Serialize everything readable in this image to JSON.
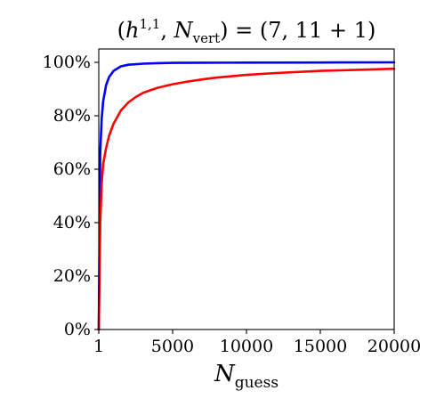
{
  "chart_data": {
    "type": "line",
    "title": {
      "open": "(",
      "h": "h",
      "h_sup": "1,1",
      "comma": ", ",
      "N": "N",
      "N_sub": "vert",
      "rest": ") = (7, 11 + 1)"
    },
    "xlabel": {
      "main": "N",
      "sub": "guess"
    },
    "ylabel": "",
    "xlim": [
      1,
      20000
    ],
    "ylim": [
      0,
      105
    ],
    "x_ticks": [
      1,
      5000,
      10000,
      15000,
      20000
    ],
    "x_tick_labels": [
      "1",
      "5000",
      "10000",
      "15000",
      "20000"
    ],
    "y_ticks": [
      0,
      20,
      40,
      60,
      80,
      100
    ],
    "y_tick_labels": [
      "0%",
      "20%",
      "40%",
      "60%",
      "80%",
      "100%"
    ],
    "grid": false,
    "legend": "none",
    "series": [
      {
        "color": "#0000ff",
        "x": [
          1,
          100,
          200,
          300,
          500,
          700,
          1000,
          1500,
          2000,
          3000,
          4000,
          5000,
          7000,
          10000,
          15000,
          20000
        ],
        "values": [
          0,
          66,
          79,
          85.5,
          91.5,
          94.5,
          96.8,
          98.5,
          99.1,
          99.5,
          99.7,
          99.8,
          99.85,
          99.9,
          99.95,
          100
        ]
      },
      {
        "color": "#ff0000",
        "x": [
          1,
          100,
          200,
          300,
          500,
          700,
          1000,
          1500,
          2000,
          2500,
          3000,
          4000,
          5000,
          6000,
          7000,
          8000,
          10000,
          12000,
          15000,
          17500,
          20000
        ],
        "values": [
          0,
          40,
          55,
          62,
          68,
          72.5,
          77,
          82,
          85,
          87,
          88.6,
          90.5,
          91.8,
          92.8,
          93.6,
          94.3,
          95.3,
          96,
          96.8,
          97.2,
          97.6
        ]
      }
    ]
  }
}
